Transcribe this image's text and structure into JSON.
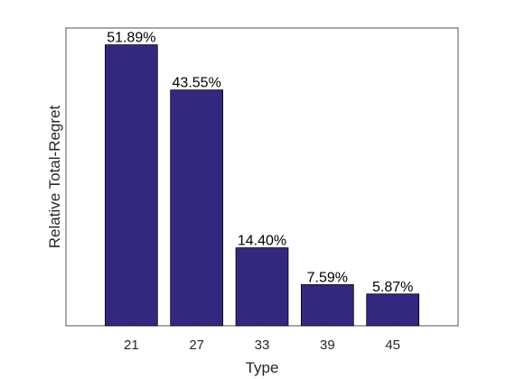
{
  "chart_data": {
    "type": "bar",
    "categories": [
      "21",
      "27",
      "33",
      "39",
      "45"
    ],
    "values": [
      51.89,
      43.55,
      14.4,
      7.59,
      5.87
    ],
    "data_labels": [
      "51.89%",
      "43.55%",
      "14.40%",
      "7.59%",
      "5.87%"
    ],
    "xlabel": "Type",
    "ylabel": "Relative Total-Regret",
    "ylim": [
      0,
      55
    ],
    "y_ticks_shown": false,
    "grid": false,
    "legend": "none",
    "bar_color": "#33287f",
    "bar_edge_color": "#000000"
  }
}
